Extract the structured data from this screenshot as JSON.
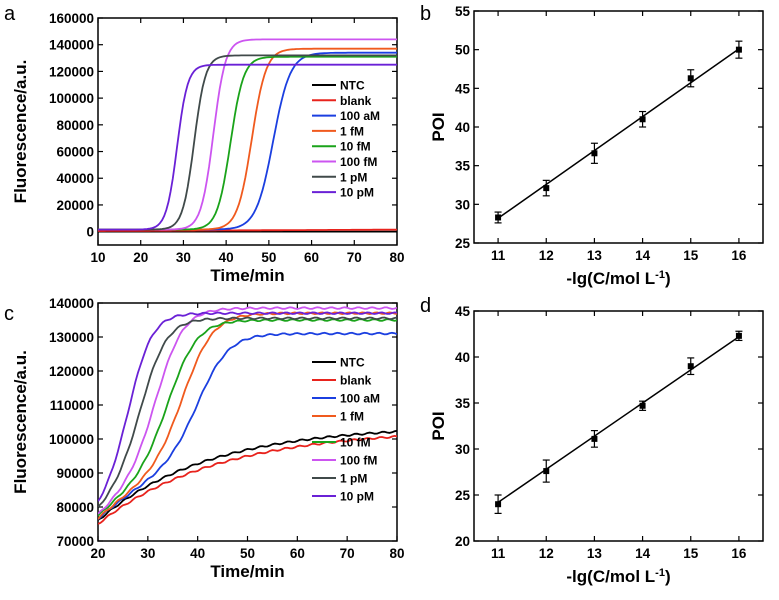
{
  "chart_data": [
    {
      "panel": "a",
      "type": "line",
      "xlabel": "Time/min",
      "ylabel": "Fluorescence/a.u.",
      "xlim": [
        10,
        80
      ],
      "ylim": [
        -10000,
        160000
      ],
      "xticks": [
        10,
        20,
        30,
        40,
        50,
        60,
        70,
        80
      ],
      "yticks": [
        0,
        20000,
        40000,
        60000,
        80000,
        100000,
        120000,
        140000,
        160000
      ],
      "series": [
        {
          "name": "NTC",
          "color": "#000000",
          "baseline": 0,
          "plateau": 0,
          "mid": null,
          "k": 0.5
        },
        {
          "name": "blank",
          "color": "#e8231d",
          "baseline": 500,
          "plateau": 1500,
          "mid": null,
          "k": 0.5
        },
        {
          "name": "100 aM",
          "color": "#1b3fe0",
          "baseline": 1500,
          "plateau": 134000,
          "mid": 51.0,
          "k": 0.5
        },
        {
          "name": "1 fM",
          "color": "#f05a1e",
          "baseline": 1500,
          "plateau": 137000,
          "mid": 46.0,
          "k": 0.6
        },
        {
          "name": "10 fM",
          "color": "#1aa31a",
          "baseline": 1500,
          "plateau": 131000,
          "mid": 41.0,
          "k": 0.65
        },
        {
          "name": "100 fM",
          "color": "#cc55f0",
          "baseline": 1500,
          "plateau": 144000,
          "mid": 37.0,
          "k": 0.7
        },
        {
          "name": "1 pM",
          "color": "#404a4a",
          "baseline": 1500,
          "plateau": 132000,
          "mid": 32.5,
          "k": 0.75
        },
        {
          "name": "10 pM",
          "color": "#6a21d6",
          "baseline": 1500,
          "plateau": 125000,
          "mid": 28.5,
          "k": 0.8
        }
      ]
    },
    {
      "panel": "b",
      "type": "scatter",
      "xlabel": "-lg(C/mol L",
      "xlabel_sup": "-1",
      "xlabel_end": ")",
      "ylabel": "POI",
      "xlim": [
        10.5,
        16.5
      ],
      "ylim": [
        25,
        55
      ],
      "xticks": [
        11,
        12,
        13,
        14,
        15,
        16
      ],
      "yticks": [
        25,
        30,
        35,
        40,
        45,
        50,
        55
      ],
      "x": [
        11,
        12,
        13,
        14,
        15,
        16
      ],
      "y": [
        28.3,
        32.1,
        36.6,
        41.0,
        46.3,
        50.0
      ],
      "err": [
        0.7,
        1.0,
        1.3,
        1.0,
        1.1,
        1.1
      ],
      "fit": [
        [
          11,
          28.2
        ],
        [
          16,
          50.1
        ]
      ]
    },
    {
      "panel": "c",
      "type": "line",
      "xlabel": "Time/min",
      "ylabel": "Fluorescence/a.u.",
      "xlim": [
        20,
        80
      ],
      "ylim": [
        70000,
        140000
      ],
      "xticks": [
        20,
        30,
        40,
        50,
        60,
        70,
        80
      ],
      "yticks": [
        70000,
        80000,
        90000,
        100000,
        110000,
        120000,
        130000,
        140000
      ],
      "series": [
        {
          "name": "NTC",
          "color": "#000000",
          "start": 76000,
          "plateau": 104000,
          "tau": 22,
          "mid": null,
          "k": 0.5
        },
        {
          "name": "blank",
          "color": "#e8231d",
          "start": 75000,
          "plateau": 103000,
          "tau": 24,
          "mid": null,
          "k": 0.5
        },
        {
          "name": "100 aM",
          "color": "#1b3fe0",
          "start": 76500,
          "plateau": 131000,
          "tau": 22,
          "mid": 40.5,
          "k": 0.32
        },
        {
          "name": "1 fM",
          "color": "#f05a1e",
          "start": 76500,
          "plateau": 137000,
          "tau": 22,
          "mid": 37.5,
          "k": 0.33
        },
        {
          "name": "10 fM",
          "color": "#1aa31a",
          "start": 77000,
          "plateau": 135000,
          "tau": 22,
          "mid": 34.5,
          "k": 0.34
        },
        {
          "name": "100 fM",
          "color": "#cc55f0",
          "start": 77000,
          "plateau": 138500,
          "tau": 22,
          "mid": 32.0,
          "k": 0.36
        },
        {
          "name": "1 pM",
          "color": "#404a4a",
          "start": 78000,
          "plateau": 135500,
          "tau": 22,
          "mid": 29.0,
          "k": 0.38
        },
        {
          "name": "10 pM",
          "color": "#6a21d6",
          "start": 78000,
          "plateau": 137000,
          "tau": 22,
          "mid": 26.5,
          "k": 0.42
        }
      ]
    },
    {
      "panel": "d",
      "type": "scatter",
      "xlabel": "-lg(C/mol L",
      "xlabel_sup": "-1",
      "xlabel_end": ")",
      "ylabel": "POI",
      "xlim": [
        10.5,
        16.5
      ],
      "ylim": [
        20,
        45
      ],
      "xticks": [
        11,
        12,
        13,
        14,
        15,
        16
      ],
      "yticks": [
        20,
        25,
        30,
        35,
        40,
        45
      ],
      "x": [
        11,
        12,
        13,
        14,
        15,
        16
      ],
      "y": [
        24.0,
        27.6,
        31.1,
        34.7,
        39.0,
        42.3
      ],
      "err": [
        1.0,
        1.2,
        0.9,
        0.5,
        0.9,
        0.5
      ],
      "fit": [
        [
          11,
          24.2
        ],
        [
          16,
          42.2
        ]
      ]
    }
  ]
}
